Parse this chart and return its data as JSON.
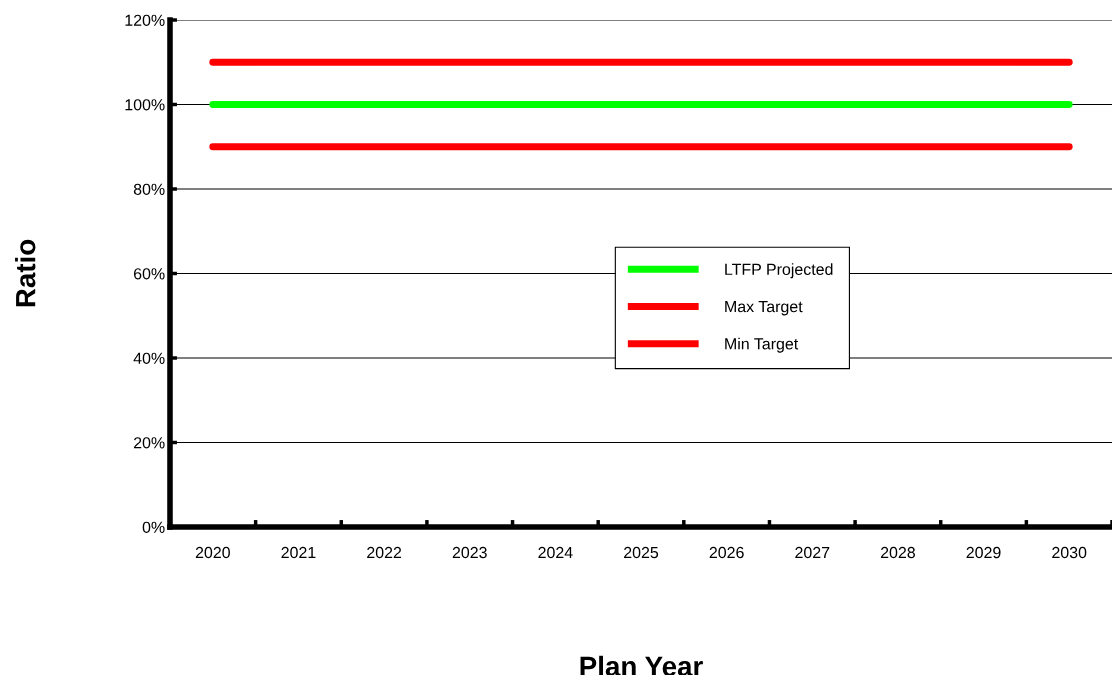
{
  "chart_data": {
    "type": "line",
    "xlabel": "Plan Year",
    "ylabel": "Ratio",
    "categories": [
      "2020",
      "2021",
      "2022",
      "2023",
      "2024",
      "2025",
      "2026",
      "2027",
      "2028",
      "2029",
      "2030"
    ],
    "series": [
      {
        "name": "LTFP Projected",
        "color": "#00ff00",
        "values": [
          100,
          100,
          100,
          100,
          100,
          100,
          100,
          100,
          100,
          100,
          100
        ]
      },
      {
        "name": "Max Target",
        "color": "#ff0000",
        "values": [
          110,
          110,
          110,
          110,
          110,
          110,
          110,
          110,
          110,
          110,
          110
        ]
      },
      {
        "name": "Min Target",
        "color": "#ff0000",
        "values": [
          90,
          90,
          90,
          90,
          90,
          90,
          90,
          90,
          90,
          90,
          90
        ]
      }
    ],
    "ylim": [
      0,
      120
    ],
    "yticks": [
      {
        "value": 0,
        "label": "0%"
      },
      {
        "value": 20,
        "label": "20%"
      },
      {
        "value": 40,
        "label": "40%"
      },
      {
        "value": 60,
        "label": "60%"
      },
      {
        "value": 80,
        "label": "80%"
      },
      {
        "value": 100,
        "label": "100%"
      },
      {
        "value": 120,
        "label": "120%"
      }
    ],
    "grid": "y",
    "legend": "center",
    "marker": "none",
    "line_style": "solid"
  }
}
